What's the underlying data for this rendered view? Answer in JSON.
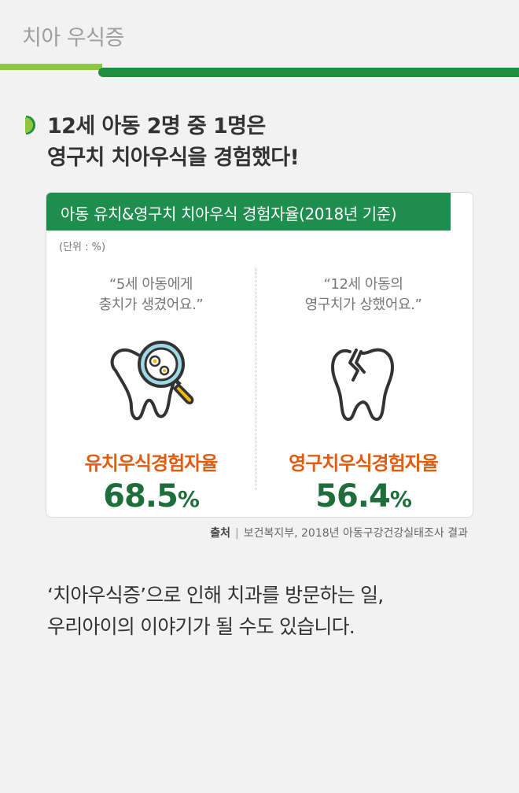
{
  "page": {
    "title": "치아 우식증"
  },
  "headline": {
    "line1": "12세 아동 2명 중 1명은",
    "line2": "영구치 치아우식을 경험했다!"
  },
  "card": {
    "title": "아동 유치&영구치 치아우식 경험자율(2018년 기준)",
    "unit": "(단위 : %)",
    "left": {
      "quote_line1": "“5세 아동에게",
      "quote_line2": "충치가 생겼어요.”",
      "icon": "tooth-magnifier-icon",
      "label": "유치우식경험자율",
      "value": "68.5",
      "unit": "%"
    },
    "right": {
      "quote_line1": "“12세 아동의",
      "quote_line2": "영구치가 상했어요.”",
      "icon": "broken-tooth-icon",
      "label": "영구치우식경험자율",
      "value": "56.4",
      "unit": "%"
    }
  },
  "source": {
    "label": "출처",
    "separator": "|",
    "text": "보건복지부, 2018년 아동구강건강실태조사 결과"
  },
  "closing": {
    "line1": "‘치아우식증’으로 인해 치과를 방문하는 일,",
    "line2": "우리아이의 이야기가 될 수도 있습니다."
  },
  "colors": {
    "green": "#1e8e4e",
    "lime": "#8dc63f",
    "orange": "#e35b0e",
    "dark_green": "#1e6e3c"
  }
}
